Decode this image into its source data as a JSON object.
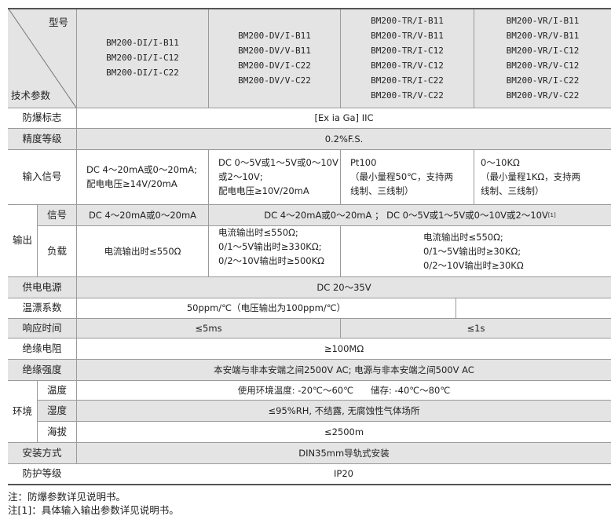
{
  "header": {
    "model_label": "型号",
    "param_label": "技术参数",
    "models": [
      [
        "BM200-DI/I-B11",
        "BM200-DI/I-C12",
        "BM200-DI/I-C22"
      ],
      [
        "BM200-DV/I-B11",
        "BM200-DV/V-B11",
        "BM200-DV/I-C22",
        "BM200-DV/V-C22"
      ],
      [
        "BM200-TR/I-B11",
        "BM200-TR/V-B11",
        "BM200-TR/I-C12",
        "BM200-TR/V-C12",
        "BM200-TR/I-C22",
        "BM200-TR/V-C22"
      ],
      [
        "BM200-VR/I-B11",
        "BM200-VR/V-B11",
        "BM200-VR/I-C12",
        "BM200-VR/V-C12",
        "BM200-VR/I-C22",
        "BM200-VR/V-C22"
      ]
    ]
  },
  "rows": {
    "explosion": {
      "label": "防爆标志",
      "value": "[Ex ia Ga] IIC"
    },
    "accuracy": {
      "label": "精度等级",
      "value": "0.2%F.S."
    },
    "input": {
      "label": "输入信号",
      "values": [
        [
          "DC 4～20mA或0～20mA;",
          "配电电压≥14V/20mA"
        ],
        [
          "DC 0～5V或1～5V或0～10V",
          "或2～10V;",
          "配电电压≥10V/20mA"
        ],
        [
          "Pt100",
          "（最小量程50℃，支持两",
          "线制、三线制）"
        ],
        [
          "0～10KΩ",
          "（最小量程1KΩ，支持两",
          "线制、三线制）"
        ]
      ]
    },
    "output": {
      "label": "输出",
      "signal": {
        "label": "信号",
        "values": [
          "DC 4～20mA或0～20mA",
          "DC 4～20mA或0～20mA ； DC 0～5V或1～5V或0～10V或2～10V"
        ],
        "footnote": "[1]"
      },
      "load": {
        "label": "负载",
        "values": [
          [
            "电流输出时≤550Ω"
          ],
          [
            "电流输出时≤550Ω;",
            "0/1～5V输出时≥330KΩ;",
            "0/2～10V输出时≥500KΩ"
          ],
          [
            "电流输出时≤550Ω;",
            "0/1～5V输出时≥30KΩ;",
            "0/2～10V输出时≥30KΩ"
          ]
        ]
      }
    },
    "power": {
      "label": "供电电源",
      "value": "DC 20～35V"
    },
    "temp_coef": {
      "label": "温漂系数",
      "value": "50ppm/℃（电压输出为100ppm/℃）"
    },
    "response": {
      "label": "响应时间",
      "values": [
        "≤5ms",
        "≤1s"
      ]
    },
    "insulation_resistance": {
      "label": "绝缘电阻",
      "value": "≥100MΩ"
    },
    "insulation_strength": {
      "label": "绝缘强度",
      "value": "本安端与非本安端之间2500V AC; 电源与非本安端之间500V AC"
    },
    "environment": {
      "label": "环境",
      "temperature": {
        "label": "温度",
        "value": "使用环境温度: -20℃～60℃      储存: -40℃～80℃"
      },
      "humidity": {
        "label": "湿度",
        "value": "≤95%RH, 不结露, 无腐蚀性气体场所"
      },
      "altitude": {
        "label": "海拔",
        "value": "≤2500m"
      }
    },
    "mounting": {
      "label": "安装方式",
      "value": "DIN35mm导轨式安装"
    },
    "protection": {
      "label": "防护等级",
      "value": "IP20"
    }
  },
  "notes": [
    "注：防爆参数详见说明书。",
    "注[1]：具体输入输出参数详见说明书。"
  ],
  "colors": {
    "row_gray": "#e4e4e4",
    "border": "#9a9a9a"
  }
}
